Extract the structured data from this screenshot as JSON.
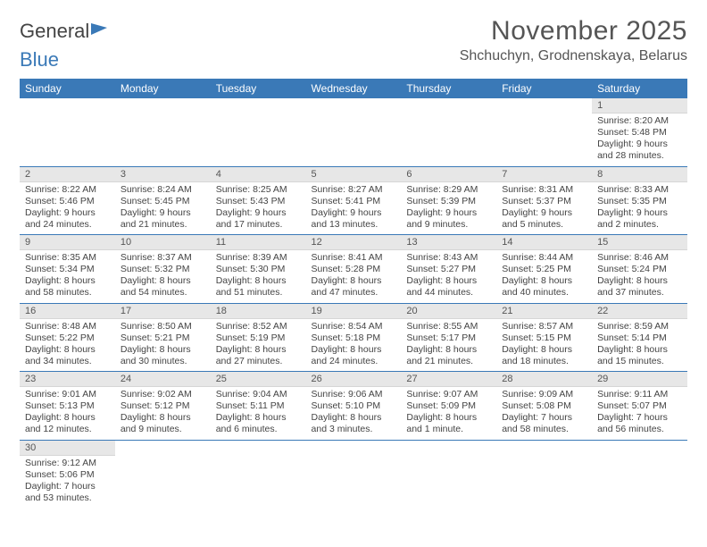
{
  "logo": {
    "part1": "General",
    "part2": "Blue"
  },
  "title": "November 2025",
  "location": "Shchuchyn, Grodnenskaya, Belarus",
  "day_headers": [
    "Sunday",
    "Monday",
    "Tuesday",
    "Wednesday",
    "Thursday",
    "Friday",
    "Saturday"
  ],
  "colors": {
    "header_bg": "#3a79b7",
    "header_text": "#ffffff",
    "daynum_bg": "#e7e7e7",
    "row_divider": "#3a79b7",
    "text": "#444444"
  },
  "weeks": [
    [
      {
        "n": "",
        "sr": "",
        "ss": "",
        "dl": ""
      },
      {
        "n": "",
        "sr": "",
        "ss": "",
        "dl": ""
      },
      {
        "n": "",
        "sr": "",
        "ss": "",
        "dl": ""
      },
      {
        "n": "",
        "sr": "",
        "ss": "",
        "dl": ""
      },
      {
        "n": "",
        "sr": "",
        "ss": "",
        "dl": ""
      },
      {
        "n": "",
        "sr": "",
        "ss": "",
        "dl": ""
      },
      {
        "n": "1",
        "sr": "Sunrise: 8:20 AM",
        "ss": "Sunset: 5:48 PM",
        "dl": "Daylight: 9 hours and 28 minutes."
      }
    ],
    [
      {
        "n": "2",
        "sr": "Sunrise: 8:22 AM",
        "ss": "Sunset: 5:46 PM",
        "dl": "Daylight: 9 hours and 24 minutes."
      },
      {
        "n": "3",
        "sr": "Sunrise: 8:24 AM",
        "ss": "Sunset: 5:45 PM",
        "dl": "Daylight: 9 hours and 21 minutes."
      },
      {
        "n": "4",
        "sr": "Sunrise: 8:25 AM",
        "ss": "Sunset: 5:43 PM",
        "dl": "Daylight: 9 hours and 17 minutes."
      },
      {
        "n": "5",
        "sr": "Sunrise: 8:27 AM",
        "ss": "Sunset: 5:41 PM",
        "dl": "Daylight: 9 hours and 13 minutes."
      },
      {
        "n": "6",
        "sr": "Sunrise: 8:29 AM",
        "ss": "Sunset: 5:39 PM",
        "dl": "Daylight: 9 hours and 9 minutes."
      },
      {
        "n": "7",
        "sr": "Sunrise: 8:31 AM",
        "ss": "Sunset: 5:37 PM",
        "dl": "Daylight: 9 hours and 5 minutes."
      },
      {
        "n": "8",
        "sr": "Sunrise: 8:33 AM",
        "ss": "Sunset: 5:35 PM",
        "dl": "Daylight: 9 hours and 2 minutes."
      }
    ],
    [
      {
        "n": "9",
        "sr": "Sunrise: 8:35 AM",
        "ss": "Sunset: 5:34 PM",
        "dl": "Daylight: 8 hours and 58 minutes."
      },
      {
        "n": "10",
        "sr": "Sunrise: 8:37 AM",
        "ss": "Sunset: 5:32 PM",
        "dl": "Daylight: 8 hours and 54 minutes."
      },
      {
        "n": "11",
        "sr": "Sunrise: 8:39 AM",
        "ss": "Sunset: 5:30 PM",
        "dl": "Daylight: 8 hours and 51 minutes."
      },
      {
        "n": "12",
        "sr": "Sunrise: 8:41 AM",
        "ss": "Sunset: 5:28 PM",
        "dl": "Daylight: 8 hours and 47 minutes."
      },
      {
        "n": "13",
        "sr": "Sunrise: 8:43 AM",
        "ss": "Sunset: 5:27 PM",
        "dl": "Daylight: 8 hours and 44 minutes."
      },
      {
        "n": "14",
        "sr": "Sunrise: 8:44 AM",
        "ss": "Sunset: 5:25 PM",
        "dl": "Daylight: 8 hours and 40 minutes."
      },
      {
        "n": "15",
        "sr": "Sunrise: 8:46 AM",
        "ss": "Sunset: 5:24 PM",
        "dl": "Daylight: 8 hours and 37 minutes."
      }
    ],
    [
      {
        "n": "16",
        "sr": "Sunrise: 8:48 AM",
        "ss": "Sunset: 5:22 PM",
        "dl": "Daylight: 8 hours and 34 minutes."
      },
      {
        "n": "17",
        "sr": "Sunrise: 8:50 AM",
        "ss": "Sunset: 5:21 PM",
        "dl": "Daylight: 8 hours and 30 minutes."
      },
      {
        "n": "18",
        "sr": "Sunrise: 8:52 AM",
        "ss": "Sunset: 5:19 PM",
        "dl": "Daylight: 8 hours and 27 minutes."
      },
      {
        "n": "19",
        "sr": "Sunrise: 8:54 AM",
        "ss": "Sunset: 5:18 PM",
        "dl": "Daylight: 8 hours and 24 minutes."
      },
      {
        "n": "20",
        "sr": "Sunrise: 8:55 AM",
        "ss": "Sunset: 5:17 PM",
        "dl": "Daylight: 8 hours and 21 minutes."
      },
      {
        "n": "21",
        "sr": "Sunrise: 8:57 AM",
        "ss": "Sunset: 5:15 PM",
        "dl": "Daylight: 8 hours and 18 minutes."
      },
      {
        "n": "22",
        "sr": "Sunrise: 8:59 AM",
        "ss": "Sunset: 5:14 PM",
        "dl": "Daylight: 8 hours and 15 minutes."
      }
    ],
    [
      {
        "n": "23",
        "sr": "Sunrise: 9:01 AM",
        "ss": "Sunset: 5:13 PM",
        "dl": "Daylight: 8 hours and 12 minutes."
      },
      {
        "n": "24",
        "sr": "Sunrise: 9:02 AM",
        "ss": "Sunset: 5:12 PM",
        "dl": "Daylight: 8 hours and 9 minutes."
      },
      {
        "n": "25",
        "sr": "Sunrise: 9:04 AM",
        "ss": "Sunset: 5:11 PM",
        "dl": "Daylight: 8 hours and 6 minutes."
      },
      {
        "n": "26",
        "sr": "Sunrise: 9:06 AM",
        "ss": "Sunset: 5:10 PM",
        "dl": "Daylight: 8 hours and 3 minutes."
      },
      {
        "n": "27",
        "sr": "Sunrise: 9:07 AM",
        "ss": "Sunset: 5:09 PM",
        "dl": "Daylight: 8 hours and 1 minute."
      },
      {
        "n": "28",
        "sr": "Sunrise: 9:09 AM",
        "ss": "Sunset: 5:08 PM",
        "dl": "Daylight: 7 hours and 58 minutes."
      },
      {
        "n": "29",
        "sr": "Sunrise: 9:11 AM",
        "ss": "Sunset: 5:07 PM",
        "dl": "Daylight: 7 hours and 56 minutes."
      }
    ],
    [
      {
        "n": "30",
        "sr": "Sunrise: 9:12 AM",
        "ss": "Sunset: 5:06 PM",
        "dl": "Daylight: 7 hours and 53 minutes."
      },
      {
        "n": "",
        "sr": "",
        "ss": "",
        "dl": ""
      },
      {
        "n": "",
        "sr": "",
        "ss": "",
        "dl": ""
      },
      {
        "n": "",
        "sr": "",
        "ss": "",
        "dl": ""
      },
      {
        "n": "",
        "sr": "",
        "ss": "",
        "dl": ""
      },
      {
        "n": "",
        "sr": "",
        "ss": "",
        "dl": ""
      },
      {
        "n": "",
        "sr": "",
        "ss": "",
        "dl": ""
      }
    ]
  ]
}
